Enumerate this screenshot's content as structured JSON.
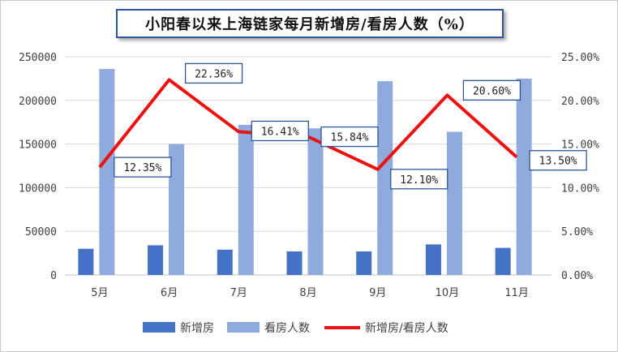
{
  "chart_data": {
    "type": "bar",
    "title": "小阳春以来上海链家每月新增房/看房人数（%）",
    "categories": [
      "5月",
      "6月",
      "7月",
      "8月",
      "9月",
      "10月",
      "11月"
    ],
    "series": [
      {
        "name": "新增房",
        "type": "bar",
        "axis": "left",
        "color": "#4472c4",
        "values": [
          30000,
          34000,
          29000,
          27000,
          27000,
          35000,
          31000
        ]
      },
      {
        "name": "看房人数",
        "type": "bar",
        "axis": "left",
        "color": "#8faadc",
        "values": [
          236000,
          150000,
          172000,
          168000,
          222000,
          164000,
          225000
        ]
      },
      {
        "name": "新增房/看房人数",
        "type": "line",
        "axis": "right",
        "color": "#ee1111",
        "values": [
          12.35,
          22.36,
          16.41,
          15.84,
          12.1,
          20.6,
          13.5
        ],
        "labels": [
          "12.35%",
          "22.36%",
          "16.41%",
          "15.84%",
          "12.10%",
          "20.60%",
          "13.50%"
        ]
      }
    ],
    "left_axis": {
      "ylim": [
        0,
        250000
      ],
      "ticks": [
        "0",
        "50000",
        "100000",
        "150000",
        "200000",
        "250000"
      ]
    },
    "right_axis": {
      "ylim": [
        0,
        25
      ],
      "ticks": [
        "0.00%",
        "5.00%",
        "10.00%",
        "15.00%",
        "20.00%",
        "25.00%"
      ]
    },
    "grid": true,
    "legend_position": "bottom"
  }
}
